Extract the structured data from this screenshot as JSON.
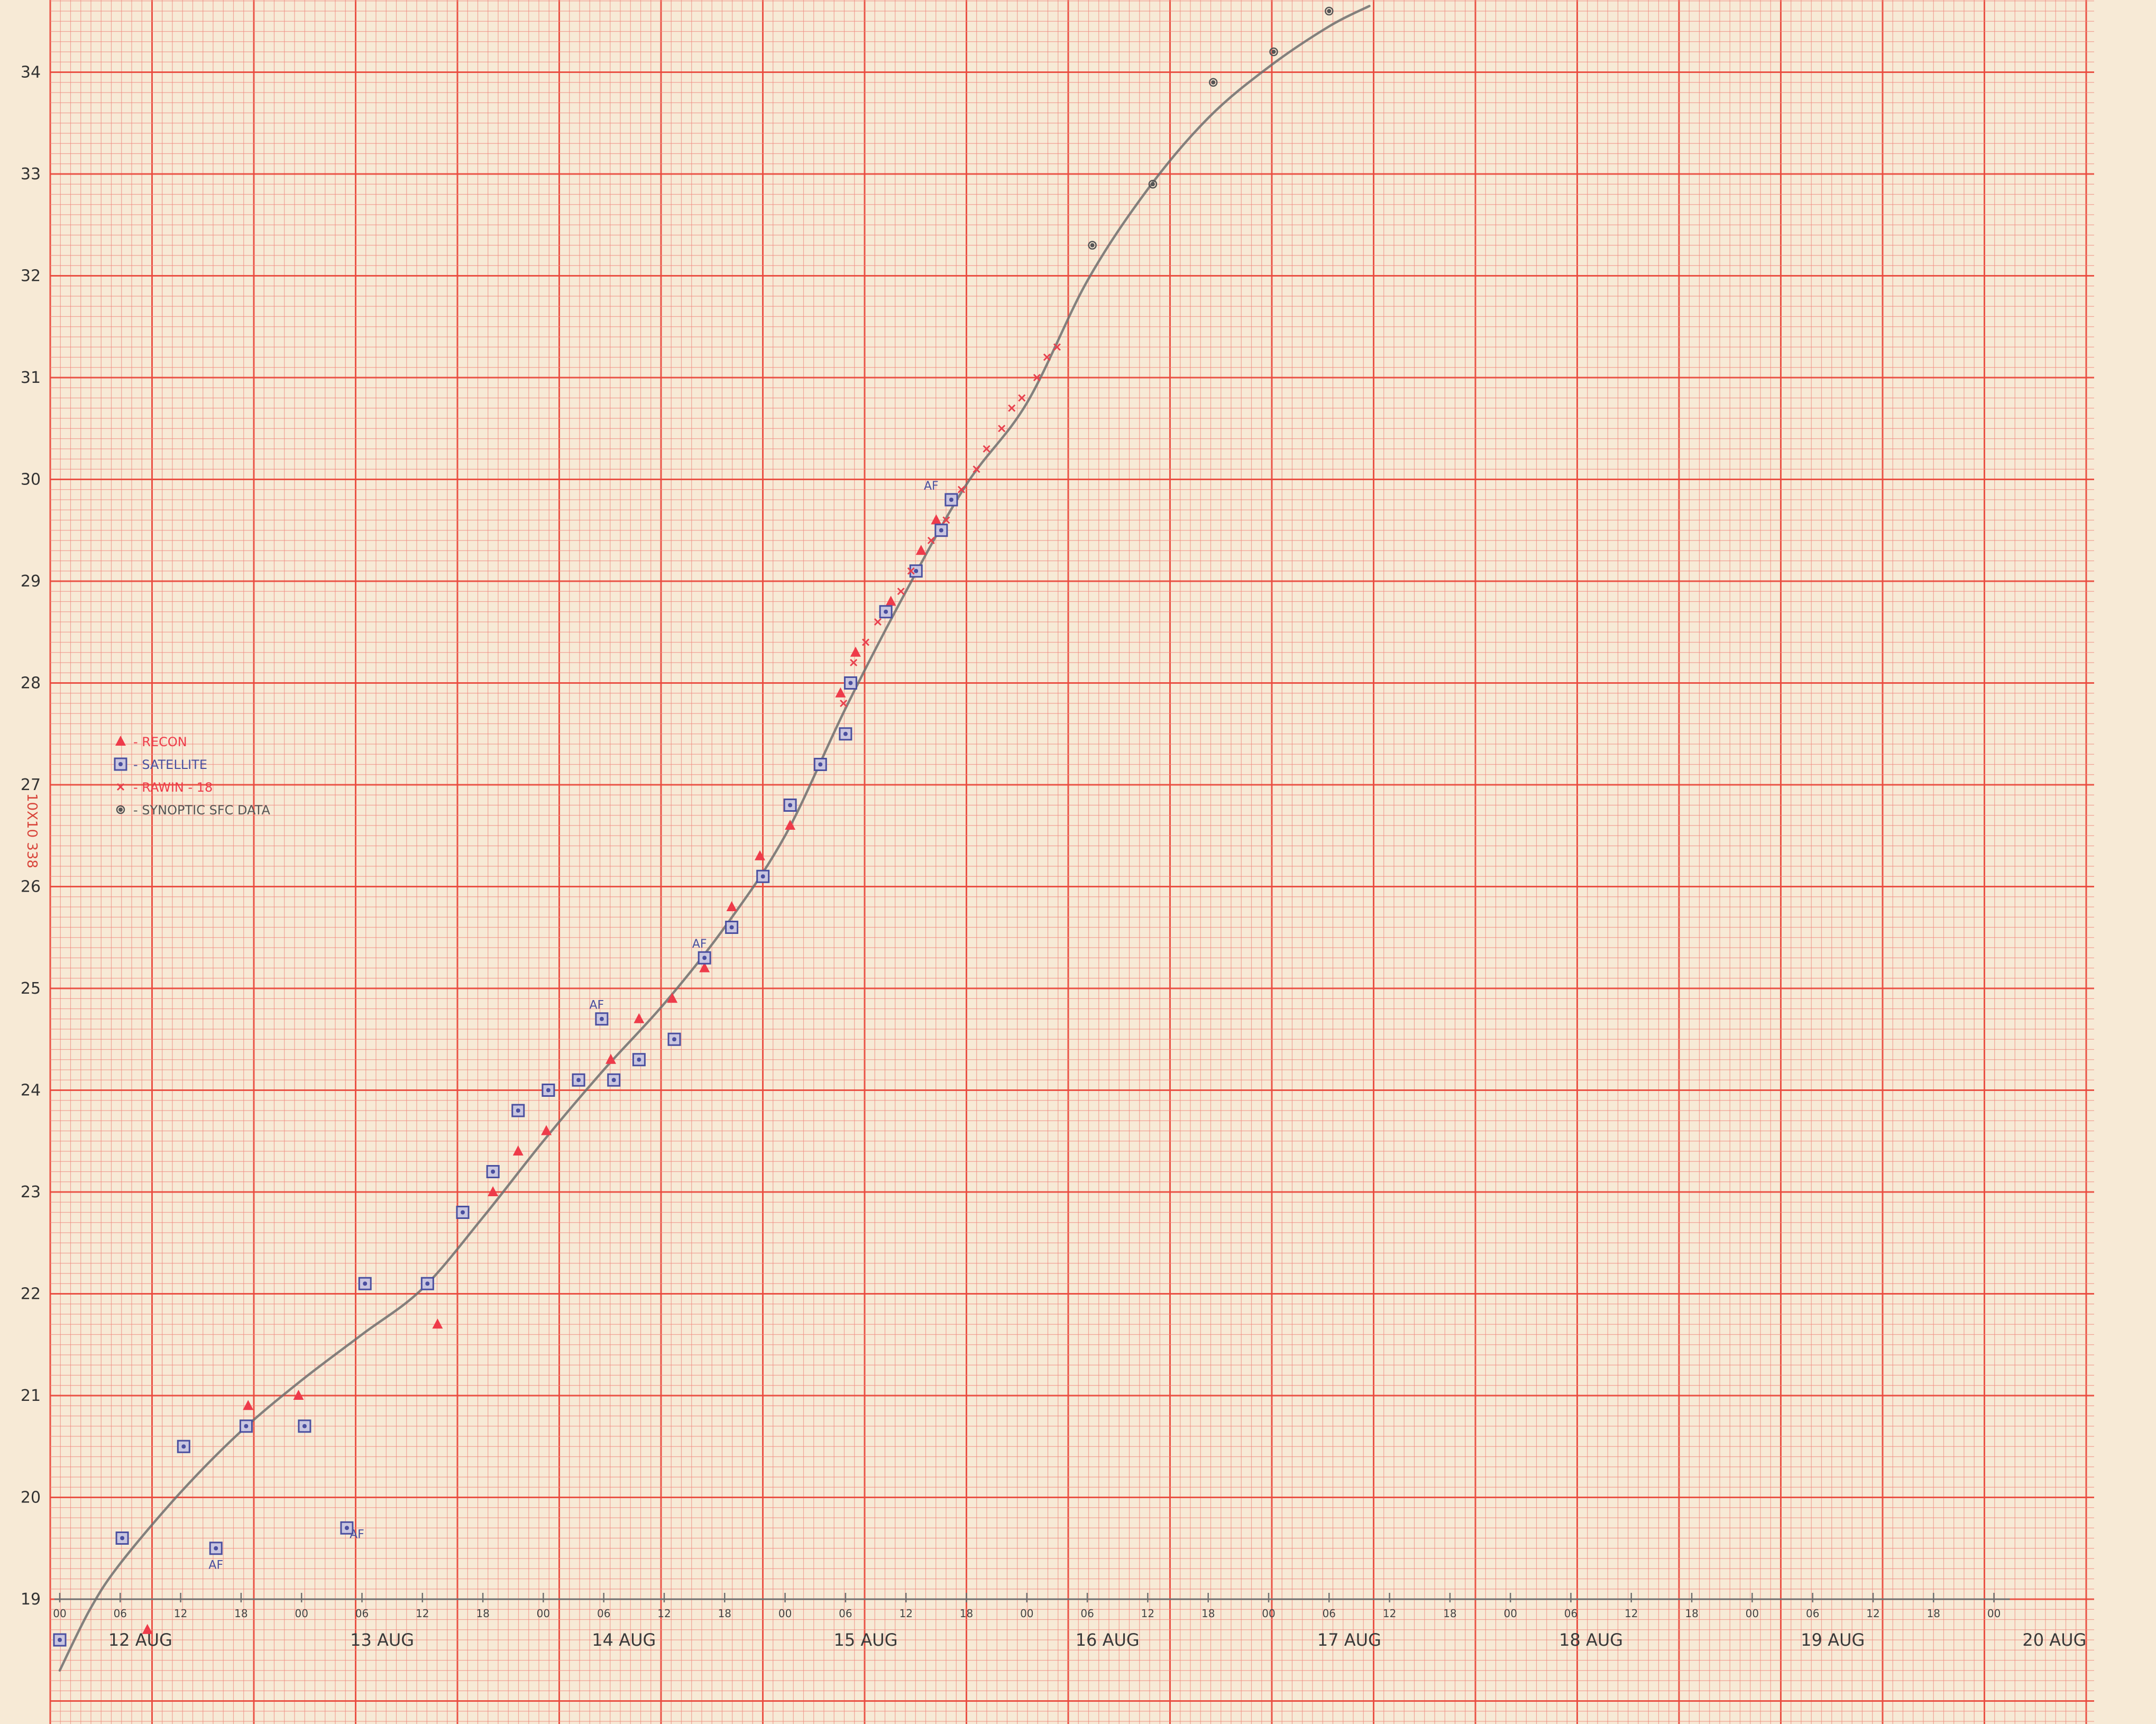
{
  "colors": {
    "paper": "#f7ead6",
    "grid_minor": "#ef8a80",
    "grid_major": "#ea4a3e",
    "pencil": "#6f6f6f",
    "recon": "#ee3b4a",
    "satellite": "#4a4fa0",
    "rawin": "#e8414e",
    "synoptic": "#555555"
  },
  "margin_label": "10X10  338",
  "legend": [
    {
      "symbol": "triangle",
      "label": "- RECON"
    },
    {
      "symbol": "boxed-dot",
      "label": "- SATELLITE"
    },
    {
      "symbol": "x",
      "label": "- RAWIN - 18"
    },
    {
      "symbol": "circled-dot",
      "label": "- SYNOPTIC SFC DATA"
    }
  ],
  "chart_data": {
    "type": "scatter",
    "title": "",
    "xlabel": "",
    "ylabel": "",
    "ylim": [
      19,
      34.6
    ],
    "xlim": [
      "12 AUG 00",
      "20 AUG 00"
    ],
    "grid": true,
    "legend_position": "left",
    "y_ticks": [
      {
        "value": 19,
        "label": "19"
      },
      {
        "value": 20,
        "label": "20"
      },
      {
        "value": 21,
        "label": "21"
      },
      {
        "value": 22,
        "label": "22"
      },
      {
        "value": 23,
        "label": "23"
      },
      {
        "value": 24,
        "label": "24"
      },
      {
        "value": 25,
        "label": "25"
      },
      {
        "value": 26,
        "label": "26"
      },
      {
        "value": 27,
        "label": "27"
      },
      {
        "value": 28,
        "label": "28"
      },
      {
        "value": 29,
        "label": "29"
      },
      {
        "value": 30,
        "label": "30"
      },
      {
        "value": 31,
        "label": "31"
      },
      {
        "value": 32,
        "label": "32"
      },
      {
        "value": 33,
        "label": "33"
      },
      {
        "value": 34,
        "label": "34"
      }
    ],
    "x_ticks": [
      {
        "hours": 0,
        "label": "00"
      },
      {
        "hours": 6,
        "label": "06"
      },
      {
        "hours": 12,
        "label": "12"
      },
      {
        "hours": 18,
        "label": "18"
      },
      {
        "hours": 24,
        "label": "00"
      },
      {
        "hours": 30,
        "label": "06"
      },
      {
        "hours": 36,
        "label": "12"
      },
      {
        "hours": 42,
        "label": "18"
      },
      {
        "hours": 48,
        "label": "00"
      },
      {
        "hours": 54,
        "label": "06"
      },
      {
        "hours": 60,
        "label": "12"
      },
      {
        "hours": 66,
        "label": "18"
      },
      {
        "hours": 72,
        "label": "00"
      },
      {
        "hours": 78,
        "label": "06"
      },
      {
        "hours": 84,
        "label": "12"
      },
      {
        "hours": 90,
        "label": "18"
      },
      {
        "hours": 96,
        "label": "00"
      },
      {
        "hours": 102,
        "label": "06"
      },
      {
        "hours": 108,
        "label": "12"
      },
      {
        "hours": 114,
        "label": "18"
      },
      {
        "hours": 120,
        "label": "00"
      },
      {
        "hours": 126,
        "label": "06"
      },
      {
        "hours": 132,
        "label": "12"
      },
      {
        "hours": 138,
        "label": "18"
      },
      {
        "hours": 144,
        "label": "00"
      },
      {
        "hours": 150,
        "label": "06"
      },
      {
        "hours": 156,
        "label": "12"
      },
      {
        "hours": 162,
        "label": "18"
      },
      {
        "hours": 168,
        "label": "00"
      },
      {
        "hours": 174,
        "label": "06"
      },
      {
        "hours": 180,
        "label": "12"
      },
      {
        "hours": 186,
        "label": "18"
      },
      {
        "hours": 192,
        "label": "00"
      }
    ],
    "date_labels": [
      {
        "hours": 8,
        "label": "12 AUG"
      },
      {
        "hours": 32,
        "label": "13 AUG"
      },
      {
        "hours": 56,
        "label": "14 AUG"
      },
      {
        "hours": 80,
        "label": "15 AUG"
      },
      {
        "hours": 104,
        "label": "16 AUG"
      },
      {
        "hours": 128,
        "label": "17 AUG"
      },
      {
        "hours": 152,
        "label": "18 AUG"
      },
      {
        "hours": 176,
        "label": "19 AUG"
      },
      {
        "hours": 198,
        "label": "20 AUG"
      }
    ],
    "series": [
      {
        "name": "RECON",
        "marker": "triangle",
        "points": [
          {
            "hours": 8.7,
            "value": 18.7
          },
          {
            "hours": 18.7,
            "value": 20.9
          },
          {
            "hours": 23.7,
            "value": 21.0
          },
          {
            "hours": 37.5,
            "value": 21.7
          },
          {
            "hours": 43.0,
            "value": 23.0
          },
          {
            "hours": 45.5,
            "value": 23.4
          },
          {
            "hours": 48.3,
            "value": 23.6
          },
          {
            "hours": 54.7,
            "value": 24.3
          },
          {
            "hours": 57.5,
            "value": 24.7
          },
          {
            "hours": 60.8,
            "value": 24.9
          },
          {
            "hours": 64.0,
            "value": 25.2
          },
          {
            "hours": 66.7,
            "value": 25.8
          },
          {
            "hours": 69.5,
            "value": 26.3
          },
          {
            "hours": 72.5,
            "value": 26.6
          },
          {
            "hours": 75.5,
            "value": 27.2
          },
          {
            "hours": 77.5,
            "value": 27.9
          },
          {
            "hours": 79.0,
            "value": 28.3
          },
          {
            "hours": 82.5,
            "value": 28.8
          },
          {
            "hours": 85.5,
            "value": 29.3
          },
          {
            "hours": 87.0,
            "value": 29.6
          }
        ]
      },
      {
        "name": "SATELLITE",
        "marker": "boxed-dot",
        "points": [
          {
            "hours": 0.0,
            "value": 18.6
          },
          {
            "hours": 6.2,
            "value": 19.6
          },
          {
            "hours": 12.3,
            "value": 20.5
          },
          {
            "hours": 15.5,
            "value": 19.5
          },
          {
            "hours": 18.5,
            "value": 20.7
          },
          {
            "hours": 24.3,
            "value": 20.7
          },
          {
            "hours": 28.5,
            "value": 19.7
          },
          {
            "hours": 30.3,
            "value": 22.1
          },
          {
            "hours": 36.5,
            "value": 22.1
          },
          {
            "hours": 40.0,
            "value": 22.8
          },
          {
            "hours": 43.0,
            "value": 23.2
          },
          {
            "hours": 45.5,
            "value": 23.8
          },
          {
            "hours": 48.5,
            "value": 24.0
          },
          {
            "hours": 51.5,
            "value": 24.1
          },
          {
            "hours": 53.8,
            "value": 24.7
          },
          {
            "hours": 55.0,
            "value": 24.1
          },
          {
            "hours": 57.5,
            "value": 24.3
          },
          {
            "hours": 61.0,
            "value": 24.5
          },
          {
            "hours": 64.0,
            "value": 25.3
          },
          {
            "hours": 66.7,
            "value": 25.6
          },
          {
            "hours": 69.8,
            "value": 26.1
          },
          {
            "hours": 72.5,
            "value": 26.8
          },
          {
            "hours": 75.5,
            "value": 27.2
          },
          {
            "hours": 78.0,
            "value": 27.5
          },
          {
            "hours": 78.5,
            "value": 28.0
          },
          {
            "hours": 82.0,
            "value": 28.7
          },
          {
            "hours": 85.0,
            "value": 29.1
          },
          {
            "hours": 87.5,
            "value": 29.5
          },
          {
            "hours": 88.5,
            "value": 29.8
          }
        ]
      },
      {
        "name": "RAWIN - 18",
        "marker": "x",
        "points": [
          {
            "hours": 77.8,
            "value": 27.8
          },
          {
            "hours": 78.8,
            "value": 28.2
          },
          {
            "hours": 80.0,
            "value": 28.4
          },
          {
            "hours": 81.2,
            "value": 28.6
          },
          {
            "hours": 83.5,
            "value": 28.9
          },
          {
            "hours": 84.5,
            "value": 29.1
          },
          {
            "hours": 86.5,
            "value": 29.4
          },
          {
            "hours": 88.0,
            "value": 29.6
          },
          {
            "hours": 89.5,
            "value": 29.9
          },
          {
            "hours": 91.0,
            "value": 30.1
          },
          {
            "hours": 92.0,
            "value": 30.3
          },
          {
            "hours": 93.5,
            "value": 30.5
          },
          {
            "hours": 94.5,
            "value": 30.7
          },
          {
            "hours": 95.5,
            "value": 30.8
          },
          {
            "hours": 97.0,
            "value": 31.0
          },
          {
            "hours": 98.0,
            "value": 31.2
          },
          {
            "hours": 99.0,
            "value": 31.3
          }
        ]
      },
      {
        "name": "SYNOPTIC SFC DATA",
        "marker": "circled-dot",
        "points": [
          {
            "hours": 102.5,
            "value": 32.3
          },
          {
            "hours": 108.5,
            "value": 32.9
          },
          {
            "hours": 114.5,
            "value": 33.9
          },
          {
            "hours": 120.5,
            "value": 34.2
          },
          {
            "hours": 126.0,
            "value": 34.6
          }
        ]
      }
    ],
    "annotations": [
      {
        "hours": 15.5,
        "value": 19.3,
        "text": "AF"
      },
      {
        "hours": 29.5,
        "value": 19.6,
        "text": "AF"
      },
      {
        "hours": 53.3,
        "value": 24.8,
        "text": "AF"
      },
      {
        "hours": 63.5,
        "value": 25.4,
        "text": "AF"
      },
      {
        "hours": 86.5,
        "value": 29.9,
        "text": "AF"
      }
    ],
    "best_track": [
      {
        "hours": 0,
        "value": 18.3
      },
      {
        "hours": 3,
        "value": 18.9
      },
      {
        "hours": 6,
        "value": 19.35
      },
      {
        "hours": 12,
        "value": 20.05
      },
      {
        "hours": 18,
        "value": 20.65
      },
      {
        "hours": 24,
        "value": 21.15
      },
      {
        "hours": 30,
        "value": 21.6
      },
      {
        "hours": 36,
        "value": 22.05
      },
      {
        "hours": 42,
        "value": 22.75
      },
      {
        "hours": 48,
        "value": 23.5
      },
      {
        "hours": 54,
        "value": 24.2
      },
      {
        "hours": 60,
        "value": 24.85
      },
      {
        "hours": 66,
        "value": 25.6
      },
      {
        "hours": 72,
        "value": 26.5
      },
      {
        "hours": 78,
        "value": 27.75
      },
      {
        "hours": 84,
        "value": 28.9
      },
      {
        "hours": 90,
        "value": 29.95
      },
      {
        "hours": 96,
        "value": 30.75
      },
      {
        "hours": 102,
        "value": 31.95
      },
      {
        "hours": 108,
        "value": 32.85
      },
      {
        "hours": 114,
        "value": 33.55
      },
      {
        "hours": 120,
        "value": 34.05
      },
      {
        "hours": 126,
        "value": 34.45
      },
      {
        "hours": 130,
        "value": 34.65
      }
    ]
  }
}
